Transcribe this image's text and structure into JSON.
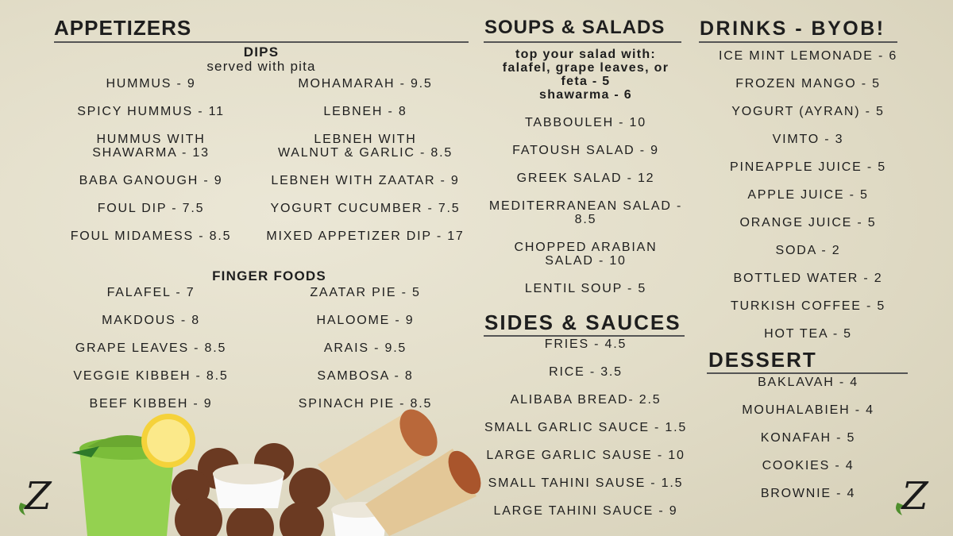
{
  "appetizers": {
    "title": "APPETIZERS",
    "dips_title": "DIPS",
    "dips_subtitle": "served with pita",
    "dips": [
      [
        "HUMMUS - 9",
        "MOHAMARAH - 9.5"
      ],
      [
        "SPICY HUMMUS - 11",
        "LEBNEH - 8"
      ],
      [
        "HUMMUS WITH\nSHAWARMA - 13",
        "LEBNEH WITH\nWALNUT & GARLIC - 8.5"
      ],
      [
        "BABA GANOUGH - 9",
        "LEBNEH WITH ZAATAR - 9"
      ],
      [
        "FOUL DIP - 7.5",
        "YOGURT CUCUMBER - 7.5"
      ],
      [
        "FOUL MIDAMESS - 8.5",
        "MIXED APPETIZER DIP - 17"
      ]
    ],
    "finger_title": "FINGER FOODS",
    "finger": [
      [
        "FALAFEL - 7",
        "ZAATAR PIE - 5"
      ],
      [
        "MAKDOUS - 8",
        "HALOOME - 9"
      ],
      [
        "GRAPE LEAVES - 8.5",
        "ARAIS - 9.5"
      ],
      [
        "VEGGIE KIBBEH - 8.5",
        "SAMBOSA - 8"
      ],
      [
        "BEEF KIBBEH - 9",
        "SPINACH PIE - 8.5"
      ]
    ]
  },
  "soups": {
    "title": "SOUPS & SALADS",
    "note": "top your salad with:\nfalafel, grape leaves, or\nfeta - 5\nshawarma - 6",
    "items": [
      "TABBOULEH - 10",
      "FATOUSH SALAD - 9",
      "GREEK SALAD - 12",
      "MEDITERRANEAN SALAD -\n8.5",
      "CHOPPED ARABIAN\nSALAD - 10",
      "LENTIL SOUP - 5"
    ]
  },
  "sides": {
    "title": "SIDES & SAUCES",
    "items": [
      "FRIES - 4.5",
      "RICE - 3.5",
      "ALIBABA BREAD- 2.5",
      "SMALL GARLIC SAUCE - 1.5",
      "LARGE GARLIC SAUSE - 10",
      "SMALL TAHINI SAUSE - 1.5",
      "LARGE TAHINI SAUCE - 9"
    ]
  },
  "drinks": {
    "title": "DRINKS - BYOB!",
    "items": [
      "ICE MINT LEMONADE  - 6",
      "FROZEN MANGO - 5",
      "YOGURT (AYRAN) - 5",
      "VIMTO - 3",
      "PINEAPPLE JUICE - 5",
      "APPLE JUICE - 5",
      "ORANGE JUICE - 5",
      "SODA - 2",
      "BOTTLED WATER - 2",
      "TURKISH COFFEE - 5",
      "HOT TEA - 5"
    ]
  },
  "dessert": {
    "title": "DESSERT",
    "items": [
      "BAKLAVAH - 4",
      "MOUHALABIEH - 4",
      "KONAFAH - 5",
      "COOKIES - 4",
      "BROWNIE - 4"
    ]
  },
  "logo": {
    "letter": "Z"
  }
}
